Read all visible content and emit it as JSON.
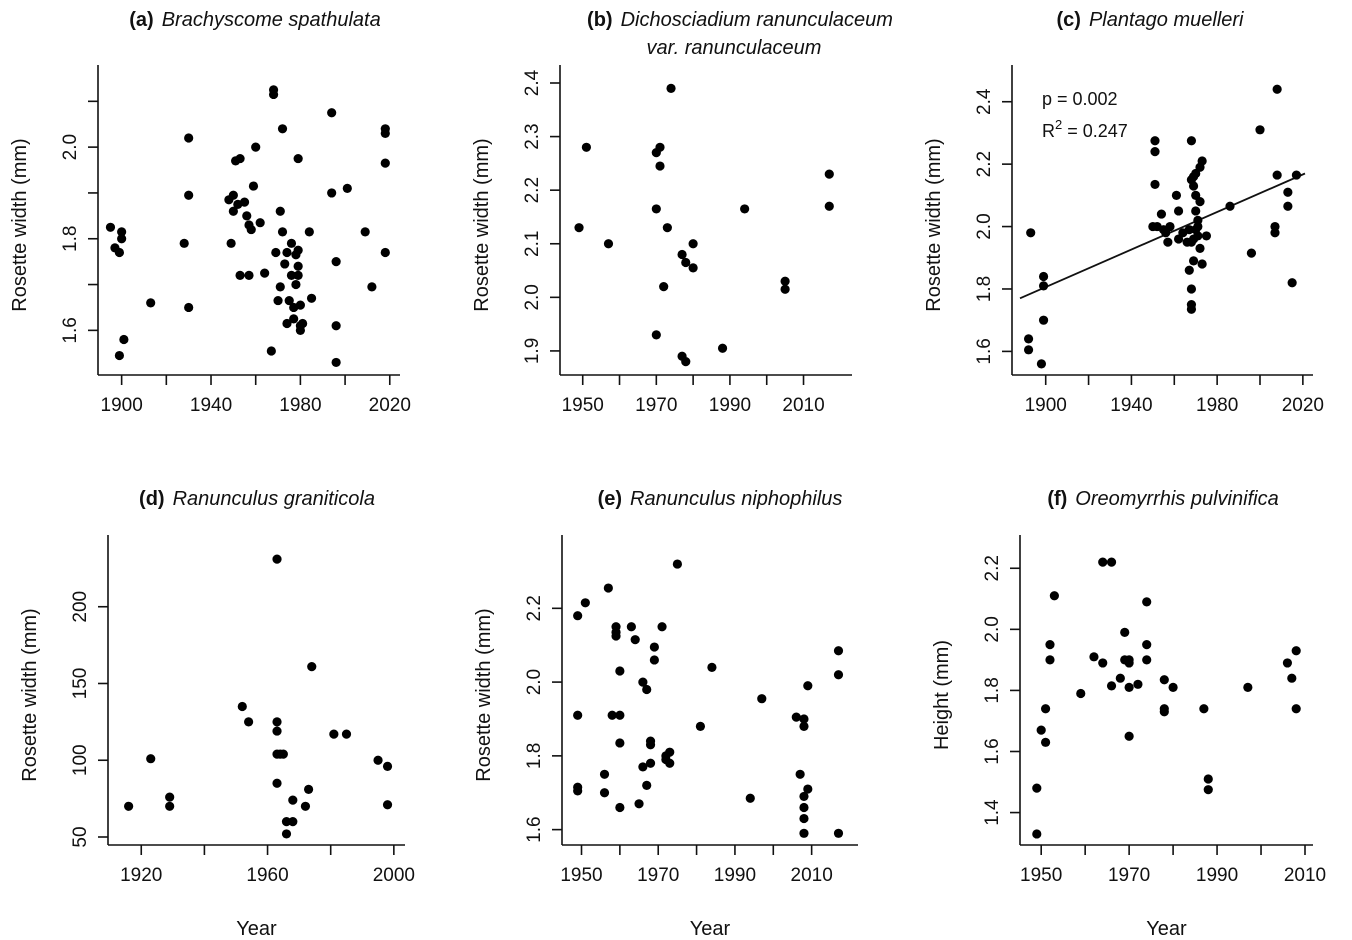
{
  "figure": {
    "x_axis_label": "Year"
  },
  "chart_data": [
    {
      "type": "scatter",
      "panel": "(a)",
      "title_species": "Brachyscome spathulata",
      "title_line2": "",
      "xlabel": "",
      "ylabel": "Rosette width (mm)",
      "xlim": [
        1893,
        2021
      ],
      "ylim": [
        1.52,
        2.14
      ],
      "xticks": [
        1900,
        1940,
        1980,
        2020
      ],
      "xticks_minor": [
        1920,
        1960,
        2000
      ],
      "yticks": [
        1.6,
        1.8,
        2.0
      ],
      "yticks_minor": [
        1.7,
        1.9,
        2.1
      ],
      "points": [
        [
          1895,
          1.825
        ],
        [
          1897,
          1.78
        ],
        [
          1899,
          1.77
        ],
        [
          1899,
          1.545
        ],
        [
          1900,
          1.8
        ],
        [
          1900,
          1.815
        ],
        [
          1901,
          1.58
        ],
        [
          1913,
          1.66
        ],
        [
          1928,
          1.79
        ],
        [
          1930,
          2.02
        ],
        [
          1930,
          1.895
        ],
        [
          1930,
          1.65
        ],
        [
          1948,
          1.885
        ],
        [
          1949,
          1.79
        ],
        [
          1950,
          1.86
        ],
        [
          1950,
          1.895
        ],
        [
          1951,
          1.97
        ],
        [
          1952,
          1.875
        ],
        [
          1953,
          1.975
        ],
        [
          1953,
          1.72
        ],
        [
          1955,
          1.88
        ],
        [
          1956,
          1.85
        ],
        [
          1957,
          1.72
        ],
        [
          1957,
          1.83
        ],
        [
          1958,
          1.82
        ],
        [
          1959,
          1.915
        ],
        [
          1960,
          2.0
        ],
        [
          1962,
          1.835
        ],
        [
          1964,
          1.725
        ],
        [
          1967,
          1.555
        ],
        [
          1968,
          2.125
        ],
        [
          1968,
          2.115
        ],
        [
          1969,
          1.77
        ],
        [
          1970,
          1.665
        ],
        [
          1971,
          1.86
        ],
        [
          1971,
          1.695
        ],
        [
          1972,
          2.04
        ],
        [
          1972,
          1.815
        ],
        [
          1973,
          1.745
        ],
        [
          1974,
          1.615
        ],
        [
          1974,
          1.77
        ],
        [
          1975,
          1.665
        ],
        [
          1976,
          1.79
        ],
        [
          1976,
          1.72
        ],
        [
          1977,
          1.625
        ],
        [
          1977,
          1.65
        ],
        [
          1978,
          1.7
        ],
        [
          1978,
          1.765
        ],
        [
          1979,
          1.775
        ],
        [
          1979,
          1.74
        ],
        [
          1979,
          1.975
        ],
        [
          1979,
          1.72
        ],
        [
          1980,
          1.655
        ],
        [
          1980,
          1.61
        ],
        [
          1980,
          1.6
        ],
        [
          1981,
          1.615
        ],
        [
          1984,
          1.815
        ],
        [
          1985,
          1.67
        ],
        [
          1994,
          1.9
        ],
        [
          1994,
          2.075
        ],
        [
          1996,
          1.75
        ],
        [
          1996,
          1.61
        ],
        [
          1996,
          1.53
        ],
        [
          2001,
          1.91
        ],
        [
          2009,
          1.815
        ],
        [
          2012,
          1.695
        ],
        [
          2018,
          2.04
        ],
        [
          2018,
          2.03
        ],
        [
          2018,
          1.965
        ],
        [
          2018,
          1.77
        ]
      ]
    },
    {
      "type": "scatter",
      "panel": "(b)",
      "title_species": "Dichosciadium ranunculaceum",
      "title_line2": "var. ranunculaceum",
      "xlabel": "",
      "ylabel": "Rosette width (mm)",
      "xlim": [
        1946,
        2021
      ],
      "ylim": [
        1.87,
        2.4
      ],
      "xticks": [
        1950,
        1970,
        1990,
        2010
      ],
      "xticks_minor": [
        1960,
        1980,
        2000
      ],
      "yticks": [
        1.9,
        2.0,
        2.1,
        2.2,
        2.3,
        2.4
      ],
      "yticks_minor": [],
      "points": [
        [
          1949,
          2.13
        ],
        [
          1951,
          2.28
        ],
        [
          1957,
          2.1
        ],
        [
          1970,
          2.165
        ],
        [
          1970,
          2.27
        ],
        [
          1970,
          1.93
        ],
        [
          1971,
          2.28
        ],
        [
          1971,
          2.245
        ],
        [
          1972,
          2.02
        ],
        [
          1973,
          2.13
        ],
        [
          1974,
          2.39
        ],
        [
          1977,
          2.08
        ],
        [
          1977,
          1.89
        ],
        [
          1978,
          2.065
        ],
        [
          1978,
          1.88
        ],
        [
          1980,
          2.1
        ],
        [
          1980,
          2.055
        ],
        [
          1988,
          1.905
        ],
        [
          1994,
          2.165
        ],
        [
          2005,
          2.03
        ],
        [
          2005,
          2.015
        ],
        [
          2017,
          2.23
        ],
        [
          2017,
          2.17
        ]
      ]
    },
    {
      "type": "scatter",
      "panel": "(c)",
      "title_species": "Plantago muelleri",
      "title_line2": "",
      "xlabel": "",
      "ylabel": "Rosette width (mm)",
      "xlim": [
        1888,
        2021
      ],
      "ylim": [
        1.55,
        2.46
      ],
      "xticks": [
        1900,
        1940,
        1980,
        2020
      ],
      "xticks_minor": [
        1920,
        1960,
        2000
      ],
      "yticks": [
        1.6,
        1.8,
        2.0,
        2.2,
        2.4
      ],
      "yticks_minor": [],
      "annotation_p": "p = 0.002",
      "annotation_r2_prefix": "R",
      "annotation_r2_sup": "2",
      "annotation_r2_value": " = 0.247",
      "trend_line": [
        [
          1888,
          1.77
        ],
        [
          2021,
          2.17
        ]
      ],
      "points": [
        [
          1892,
          1.64
        ],
        [
          1892,
          1.605
        ],
        [
          1893,
          1.98
        ],
        [
          1898,
          1.56
        ],
        [
          1899,
          1.7
        ],
        [
          1899,
          1.84
        ],
        [
          1899,
          1.81
        ],
        [
          1950,
          2.0
        ],
        [
          1951,
          2.275
        ],
        [
          1951,
          2.24
        ],
        [
          1951,
          2.135
        ],
        [
          1952,
          2.0
        ],
        [
          1954,
          2.04
        ],
        [
          1955,
          1.99
        ],
        [
          1956,
          1.98
        ],
        [
          1957,
          1.95
        ],
        [
          1958,
          2.0
        ],
        [
          1961,
          2.1
        ],
        [
          1962,
          2.05
        ],
        [
          1962,
          1.96
        ],
        [
          1964,
          1.98
        ],
        [
          1966,
          1.95
        ],
        [
          1967,
          1.86
        ],
        [
          1967,
          1.99
        ],
        [
          1968,
          2.15
        ],
        [
          1968,
          2.275
        ],
        [
          1968,
          1.95
        ],
        [
          1968,
          1.8
        ],
        [
          1968,
          1.75
        ],
        [
          1968,
          1.735
        ],
        [
          1969,
          2.16
        ],
        [
          1969,
          2.13
        ],
        [
          1969,
          1.96
        ],
        [
          1969,
          1.89
        ],
        [
          1970,
          2.17
        ],
        [
          1970,
          2.05
        ],
        [
          1970,
          1.99
        ],
        [
          1970,
          2.1
        ],
        [
          1971,
          2.0
        ],
        [
          1971,
          2.02
        ],
        [
          1971,
          1.97
        ],
        [
          1972,
          2.19
        ],
        [
          1972,
          2.08
        ],
        [
          1972,
          1.93
        ],
        [
          1973,
          1.88
        ],
        [
          1973,
          2.21
        ],
        [
          1975,
          1.97
        ],
        [
          1986,
          2.065
        ],
        [
          1996,
          1.915
        ],
        [
          2000,
          2.31
        ],
        [
          2007,
          1.98
        ],
        [
          2007,
          2.0
        ],
        [
          2008,
          2.44
        ],
        [
          2008,
          2.165
        ],
        [
          2013,
          2.11
        ],
        [
          2013,
          2.065
        ],
        [
          2015,
          1.82
        ],
        [
          2017,
          2.165
        ]
      ]
    },
    {
      "type": "scatter",
      "panel": "(d)",
      "title_species": "Ranunculus graniticola",
      "title_line2": "",
      "xlabel": "Year",
      "ylabel": "Rosette width (mm)",
      "xlim": [
        1912,
        2001
      ],
      "ylim": [
        50,
        235
      ],
      "xticks": [
        1920,
        1960,
        2000
      ],
      "xticks_minor": [
        1940,
        1980
      ],
      "yticks": [
        50,
        100,
        150,
        200
      ],
      "yticks_minor": [],
      "points": [
        [
          1916,
          70
        ],
        [
          1923,
          101
        ],
        [
          1929,
          76
        ],
        [
          1929,
          70
        ],
        [
          1952,
          135
        ],
        [
          1954,
          125
        ],
        [
          1963,
          231
        ],
        [
          1963,
          125
        ],
        [
          1963,
          119
        ],
        [
          1963,
          104
        ],
        [
          1963,
          85
        ],
        [
          1964,
          104
        ],
        [
          1965,
          104
        ],
        [
          1966,
          52
        ],
        [
          1966,
          60
        ],
        [
          1968,
          60
        ],
        [
          1968,
          74
        ],
        [
          1972,
          70
        ],
        [
          1973,
          81
        ],
        [
          1974,
          161
        ],
        [
          1981,
          117
        ],
        [
          1985,
          117
        ],
        [
          1995,
          100
        ],
        [
          1998,
          96
        ],
        [
          1998,
          71
        ]
      ]
    },
    {
      "type": "scatter",
      "panel": "(e)",
      "title_species": "Ranunculus niphophilus",
      "title_line2": "",
      "xlabel": "Year",
      "ylabel": "Rosette width (mm)",
      "xlim": [
        1947,
        2020
      ],
      "ylim": [
        1.58,
        2.35
      ],
      "xticks": [
        1950,
        1970,
        1990,
        2010
      ],
      "xticks_minor": [
        1960,
        1980,
        2000
      ],
      "yticks": [
        1.6,
        1.8,
        2.0,
        2.2
      ],
      "yticks_minor": [],
      "points": [
        [
          1949,
          2.18
        ],
        [
          1949,
          1.91
        ],
        [
          1949,
          1.715
        ],
        [
          1949,
          1.705
        ],
        [
          1951,
          2.215
        ],
        [
          1956,
          1.75
        ],
        [
          1956,
          1.7
        ],
        [
          1957,
          2.255
        ],
        [
          1958,
          1.91
        ],
        [
          1959,
          2.15
        ],
        [
          1959,
          2.135
        ],
        [
          1959,
          2.125
        ],
        [
          1960,
          1.91
        ],
        [
          1960,
          1.835
        ],
        [
          1960,
          2.03
        ],
        [
          1960,
          1.66
        ],
        [
          1963,
          2.15
        ],
        [
          1964,
          2.115
        ],
        [
          1965,
          1.67
        ],
        [
          1966,
          1.77
        ],
        [
          1966,
          2.0
        ],
        [
          1967,
          1.72
        ],
        [
          1967,
          1.98
        ],
        [
          1968,
          1.83
        ],
        [
          1968,
          1.84
        ],
        [
          1968,
          1.78
        ],
        [
          1969,
          2.095
        ],
        [
          1969,
          2.06
        ],
        [
          1971,
          2.15
        ],
        [
          1972,
          1.79
        ],
        [
          1972,
          1.8
        ],
        [
          1973,
          1.78
        ],
        [
          1973,
          1.81
        ],
        [
          1975,
          2.32
        ],
        [
          1981,
          1.88
        ],
        [
          1984,
          2.04
        ],
        [
          1994,
          1.685
        ],
        [
          1997,
          1.955
        ],
        [
          2006,
          1.905
        ],
        [
          2007,
          1.75
        ],
        [
          2008,
          1.9
        ],
        [
          2008,
          1.88
        ],
        [
          2008,
          1.69
        ],
        [
          2008,
          1.66
        ],
        [
          2008,
          1.63
        ],
        [
          2008,
          1.59
        ],
        [
          2009,
          1.99
        ],
        [
          2009,
          1.71
        ],
        [
          2017,
          2.085
        ],
        [
          2017,
          2.02
        ],
        [
          2017,
          1.59
        ]
      ]
    },
    {
      "type": "scatter",
      "panel": "(f)",
      "title_species": "Oreomyrrhis pulvinifica",
      "title_line2": "",
      "xlabel": "Year",
      "ylabel": "Height (mm)",
      "xlim": [
        1947,
        2010
      ],
      "ylim": [
        1.32,
        2.25
      ],
      "xticks": [
        1950,
        1970,
        1990,
        2010
      ],
      "xticks_minor": [
        1960,
        1980,
        2000
      ],
      "yticks": [
        1.4,
        1.6,
        1.8,
        2.0,
        2.2
      ],
      "yticks_minor": [],
      "points": [
        [
          1949,
          1.48
        ],
        [
          1949,
          1.33
        ],
        [
          1950,
          1.67
        ],
        [
          1951,
          1.63
        ],
        [
          1951,
          1.74
        ],
        [
          1952,
          1.95
        ],
        [
          1952,
          1.9
        ],
        [
          1953,
          2.11
        ],
        [
          1959,
          1.79
        ],
        [
          1962,
          1.91
        ],
        [
          1964,
          2.22
        ],
        [
          1964,
          1.89
        ],
        [
          1966,
          2.22
        ],
        [
          1966,
          1.815
        ],
        [
          1968,
          1.84
        ],
        [
          1969,
          1.99
        ],
        [
          1969,
          1.9
        ],
        [
          1970,
          1.9
        ],
        [
          1970,
          1.89
        ],
        [
          1970,
          1.81
        ],
        [
          1970,
          1.65
        ],
        [
          1972,
          1.82
        ],
        [
          1974,
          2.09
        ],
        [
          1974,
          1.95
        ],
        [
          1974,
          1.9
        ],
        [
          1978,
          1.835
        ],
        [
          1978,
          1.74
        ],
        [
          1978,
          1.73
        ],
        [
          1980,
          1.81
        ],
        [
          1987,
          1.74
        ],
        [
          1988,
          1.51
        ],
        [
          1988,
          1.475
        ],
        [
          1997,
          1.81
        ],
        [
          2006,
          1.89
        ],
        [
          2007,
          1.84
        ],
        [
          2008,
          1.93
        ],
        [
          2008,
          1.74
        ]
      ]
    }
  ]
}
